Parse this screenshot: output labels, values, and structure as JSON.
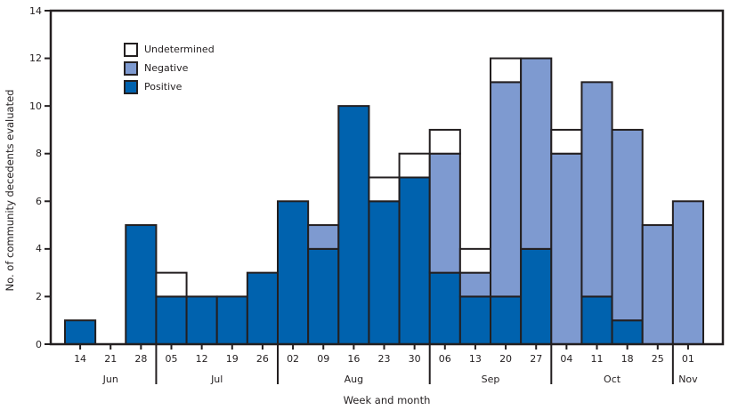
{
  "chart_data": {
    "type": "bar",
    "stacked": true,
    "title": "",
    "ylabel": "No. of community decedents evaluated",
    "xlabel": "Week and month",
    "ylim": [
      0,
      14
    ],
    "yticks": [
      0,
      2,
      4,
      6,
      8,
      10,
      12,
      14
    ],
    "grid": false,
    "legend_position": "upper-left-inside",
    "legend": [
      {
        "label": "Undetermined",
        "color": "#ffffff"
      },
      {
        "label": "Negative",
        "color": "#7e9ad0"
      },
      {
        "label": "Positive",
        "color": "#0062ae"
      }
    ],
    "months": [
      {
        "label": "Jun",
        "weeks": [
          "14",
          "21",
          "28"
        ]
      },
      {
        "label": "Jul",
        "weeks": [
          "05",
          "12",
          "19",
          "26"
        ]
      },
      {
        "label": "Aug",
        "weeks": [
          "02",
          "09",
          "16",
          "23",
          "30"
        ]
      },
      {
        "label": "Sep",
        "weeks": [
          "06",
          "13",
          "20",
          "27"
        ]
      },
      {
        "label": "Oct",
        "weeks": [
          "04",
          "11",
          "18",
          "25"
        ]
      },
      {
        "label": "Nov",
        "weeks": [
          "01"
        ]
      }
    ],
    "categories": [
      "Jun 14",
      "Jun 21",
      "Jun 28",
      "Jul 05",
      "Jul 12",
      "Jul 19",
      "Jul 26",
      "Aug 02",
      "Aug 09",
      "Aug 16",
      "Aug 23",
      "Aug 30",
      "Sep 06",
      "Sep 13",
      "Sep 20",
      "Sep 27",
      "Oct 04",
      "Oct 11",
      "Oct 18",
      "Oct 25",
      "Nov 01"
    ],
    "series": [
      {
        "name": "Positive",
        "color": "#0062ae",
        "values": [
          1,
          0,
          5,
          2,
          2,
          2,
          3,
          6,
          4,
          10,
          6,
          7,
          3,
          2,
          2,
          4,
          0,
          2,
          1,
          0,
          0
        ]
      },
      {
        "name": "Negative",
        "color": "#7e9ad0",
        "values": [
          0,
          0,
          0,
          0,
          0,
          0,
          0,
          0,
          1,
          0,
          0,
          0,
          5,
          1,
          9,
          8,
          8,
          9,
          8,
          5,
          6
        ]
      },
      {
        "name": "Undetermined",
        "color": "#ffffff",
        "values": [
          0,
          0,
          0,
          1,
          0,
          0,
          0,
          0,
          0,
          0,
          1,
          1,
          1,
          1,
          1,
          0,
          1,
          0,
          0,
          0,
          0
        ]
      }
    ],
    "colors": {
      "outline": "#231f20",
      "axis": "#231f20",
      "background": "#ffffff"
    }
  }
}
